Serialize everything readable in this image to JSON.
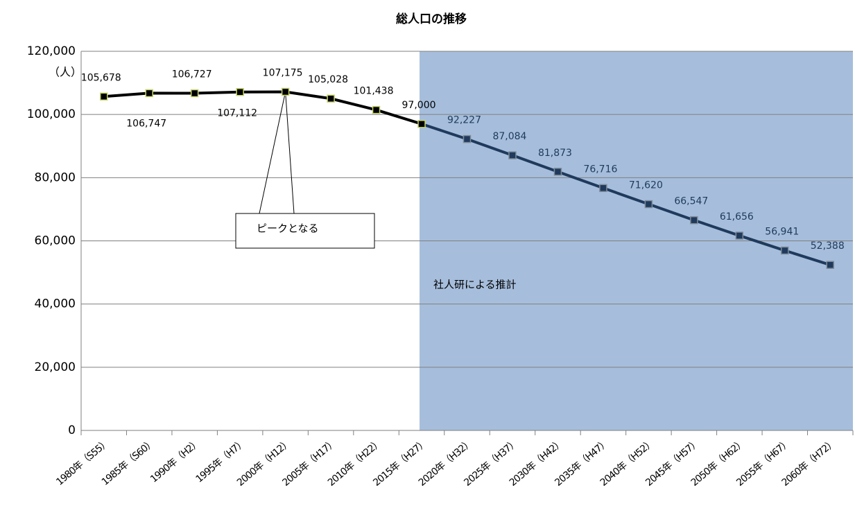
{
  "chart_data": {
    "type": "line",
    "title": "総人口の推移",
    "y_label": "（人）",
    "categories": [
      "1980年（S55）",
      "1985年（S60）",
      "1990年（H2）",
      "1995年（H7）",
      "2000年（H12）",
      "2005年（H17）",
      "2010年（H22）",
      "2015年（H27）",
      "2020年（H32）",
      "2025年（H37）",
      "2030年（H42）",
      "2035年（H47）",
      "2040年（H52）",
      "2045年（H57）",
      "2050年（H62）",
      "2055年（H67）",
      "2060年（H72）"
    ],
    "values": [
      105678,
      106747,
      106727,
      107112,
      107175,
      105028,
      101438,
      97000,
      92227,
      87084,
      81873,
      76716,
      71620,
      66547,
      61656,
      56941,
      52388
    ],
    "value_labels": [
      "105,678",
      "106,747",
      "106,727",
      "107,112",
      "107,175",
      "105,028",
      "101,438",
      "97,000",
      "92,227",
      "87,084",
      "81,873",
      "76,716",
      "71,620",
      "66,547",
      "61,656",
      "56,941",
      "52,388"
    ],
    "ylim": [
      0,
      120000
    ],
    "yticks": [
      0,
      {
        "value": 20000,
        "label": "20,000"
      },
      {
        "value": 40000,
        "label": "40,000"
      },
      {
        "value": 60000,
        "label": "60,000"
      },
      {
        "value": 80000,
        "label": "80,000"
      },
      {
        "value": 100000,
        "label": "100,000"
      },
      {
        "value": 120000,
        "label": "120,000"
      }
    ],
    "grid": true,
    "colors": {
      "actual": "#000000",
      "projection": "#1f3a5c",
      "shade": "#a6bedc"
    },
    "annotations": {
      "peak": "ピークとなる",
      "projection": "社人研による推計"
    }
  }
}
